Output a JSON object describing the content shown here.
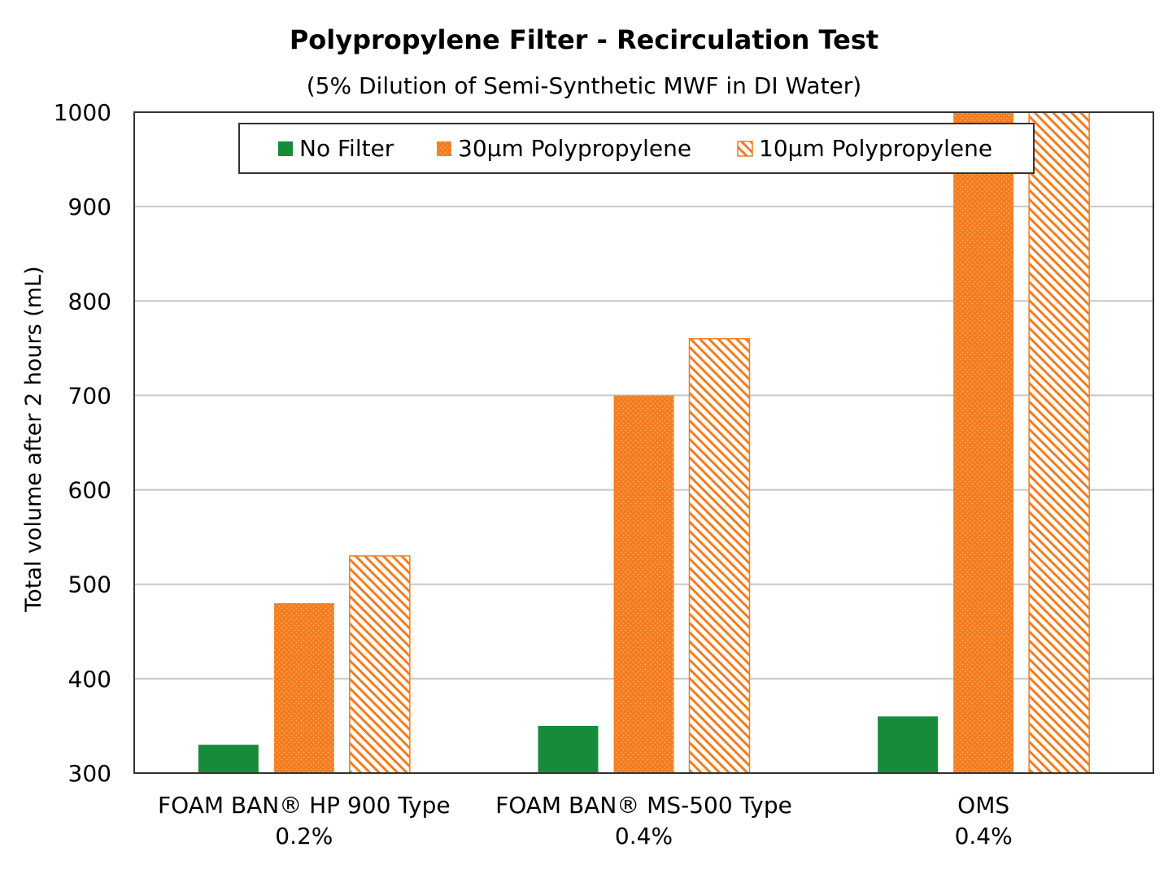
{
  "colors": {
    "no_filter": "#168C3B",
    "pp30": "#F47C1E",
    "pp10_stripe": "#F47C1E",
    "grid": "#C8C8C8",
    "axis": "#333333"
  },
  "chart_data": {
    "type": "bar",
    "title": "Polypropylene Filter - Recirculation Test",
    "subtitle": "(5% Dilution of Semi-Synthetic MWF in DI Water)",
    "xlabel": "",
    "ylabel": "Total volume after 2 hours (mL)",
    "ylim": [
      300,
      1000
    ],
    "yticks": [
      "300",
      "400",
      "500",
      "600",
      "700",
      "800",
      "900",
      "1000"
    ],
    "grid": true,
    "legend_position": "top-center",
    "categories": [
      {
        "line1": "FOAM BAN® HP 900 Type",
        "line2": "0.2%"
      },
      {
        "line1": "FOAM BAN® MS-500 Type",
        "line2": "0.4%"
      },
      {
        "line1": "OMS",
        "line2": "0.4%"
      }
    ],
    "series": [
      {
        "name": "No Filter",
        "pattern": "solid",
        "color": "#168C3B",
        "values": [
          330,
          350,
          360
        ]
      },
      {
        "name": "30µm Polypropylene",
        "pattern": "dotted",
        "color": "#F47C1E",
        "values": [
          480,
          700,
          1000
        ]
      },
      {
        "name": "10µm Polypropylene",
        "pattern": "hatched",
        "color": "#F47C1E",
        "values": [
          530,
          760,
          1000
        ]
      }
    ]
  }
}
